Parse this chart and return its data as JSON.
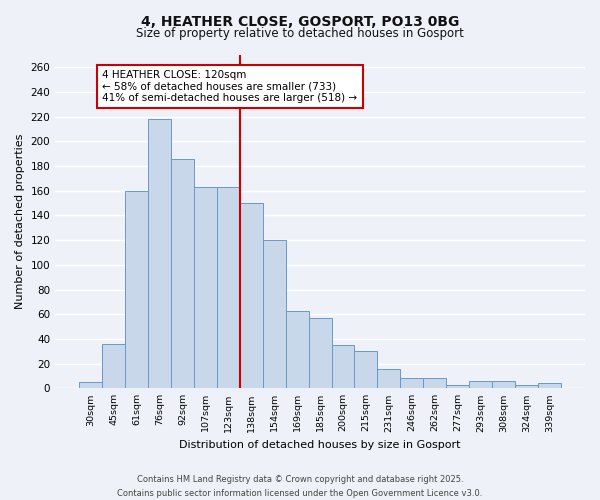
{
  "title": "4, HEATHER CLOSE, GOSPORT, PO13 0BG",
  "subtitle": "Size of property relative to detached houses in Gosport",
  "xlabel": "Distribution of detached houses by size in Gosport",
  "ylabel": "Number of detached properties",
  "bar_labels": [
    "30sqm",
    "45sqm",
    "61sqm",
    "76sqm",
    "92sqm",
    "107sqm",
    "123sqm",
    "138sqm",
    "154sqm",
    "169sqm",
    "185sqm",
    "200sqm",
    "215sqm",
    "231sqm",
    "246sqm",
    "262sqm",
    "277sqm",
    "293sqm",
    "308sqm",
    "324sqm",
    "339sqm"
  ],
  "bar_values": [
    5,
    36,
    160,
    218,
    186,
    163,
    163,
    150,
    120,
    63,
    57,
    35,
    30,
    16,
    8,
    8,
    3,
    6,
    6,
    3,
    4
  ],
  "bar_color": "#c8d8ea",
  "bar_edge_color": "#6699cc",
  "vline_color": "#cc0000",
  "vline_pos": 6.5,
  "ylim": [
    0,
    270
  ],
  "yticks": [
    0,
    20,
    40,
    60,
    80,
    100,
    120,
    140,
    160,
    180,
    200,
    220,
    240,
    260
  ],
  "annotation_title": "4 HEATHER CLOSE: 120sqm",
  "annotation_line1": "← 58% of detached houses are smaller (733)",
  "annotation_line2": "41% of semi-detached houses are larger (518) →",
  "annotation_box_facecolor": "#ffffff",
  "annotation_box_edgecolor": "#cc0000",
  "footer1": "Contains HM Land Registry data © Crown copyright and database right 2025.",
  "footer2": "Contains public sector information licensed under the Open Government Licence v3.0.",
  "background_color": "#eef2f8",
  "grid_color": "#ffffff",
  "grid_linewidth": 1.0
}
